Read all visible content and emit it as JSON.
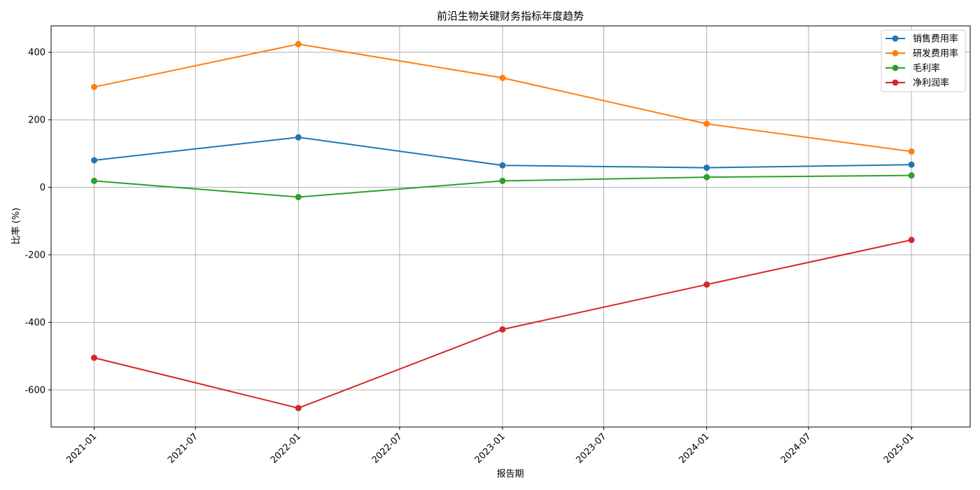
{
  "chart_data": {
    "type": "line",
    "title": "前沿生物关键财务指标年度趋势",
    "xlabel": "报告期",
    "ylabel": "比率 (%)",
    "x": [
      "2021-01",
      "2022-01",
      "2023-01",
      "2024-01",
      "2025-01"
    ],
    "x_ticks": [
      "2021-01",
      "2021-07",
      "2022-01",
      "2022-07",
      "2023-01",
      "2023-07",
      "2024-01",
      "2024-07",
      "2025-01"
    ],
    "y_ticks": [
      400,
      200,
      0,
      -200,
      -400,
      -600
    ],
    "ylim": [
      -710,
      478
    ],
    "grid": true,
    "legend_position": "top-right",
    "series": [
      {
        "name": "销售费用率",
        "color": "#1f77b4",
        "values": [
          80,
          148,
          65,
          58,
          67
        ]
      },
      {
        "name": "研发费用率",
        "color": "#ff7f0e",
        "values": [
          297,
          424,
          324,
          188,
          106
        ]
      },
      {
        "name": "毛利率",
        "color": "#2ca02c",
        "values": [
          19,
          -29,
          19,
          30,
          35
        ]
      },
      {
        "name": "净利润率",
        "color": "#d62728",
        "values": [
          -505,
          -654,
          -421,
          -288,
          -156
        ]
      }
    ]
  }
}
